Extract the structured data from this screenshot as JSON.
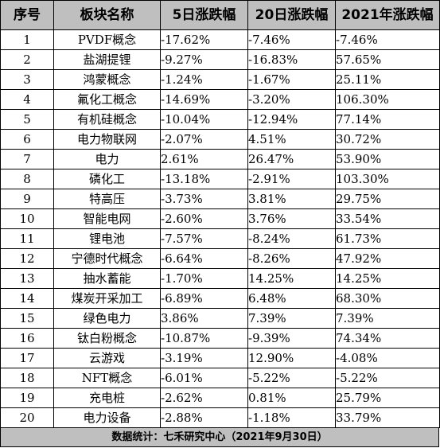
{
  "table": {
    "headers": [
      "序号",
      "板块名称",
      "5日涨跌幅",
      "20日涨跌幅",
      "2021年涨跌幅"
    ],
    "rows": [
      {
        "no": "1",
        "name": "PVDF概念",
        "d5": "-17.62%",
        "d20": "-7.46%",
        "y2021": "-7.46%"
      },
      {
        "no": "2",
        "name": "盐湖提锂",
        "d5": "-9.27%",
        "d20": "-16.83%",
        "y2021": "57.65%"
      },
      {
        "no": "3",
        "name": "鸿蒙概念",
        "d5": "-1.24%",
        "d20": "-1.67%",
        "y2021": "25.11%"
      },
      {
        "no": "4",
        "name": "氟化工概念",
        "d5": "-14.69%",
        "d20": "-3.20%",
        "y2021": "106.30%"
      },
      {
        "no": "5",
        "name": "有机硅概念",
        "d5": "-10.04%",
        "d20": "-12.94%",
        "y2021": "77.14%"
      },
      {
        "no": "6",
        "name": "电力物联网",
        "d5": "-2.07%",
        "d20": "4.51%",
        "y2021": "30.72%"
      },
      {
        "no": "7",
        "name": "电力",
        "d5": "2.61%",
        "d20": "26.47%",
        "y2021": "53.90%"
      },
      {
        "no": "8",
        "name": "磷化工",
        "d5": "-13.18%",
        "d20": "-2.91%",
        "y2021": "103.30%"
      },
      {
        "no": "9",
        "name": "特高压",
        "d5": "-3.73%",
        "d20": "3.81%",
        "y2021": "29.75%"
      },
      {
        "no": "10",
        "name": "智能电网",
        "d5": "-2.60%",
        "d20": "3.76%",
        "y2021": "33.54%"
      },
      {
        "no": "11",
        "name": "锂电池",
        "d5": "-7.57%",
        "d20": "-8.24%",
        "y2021": "61.73%"
      },
      {
        "no": "12",
        "name": "宁德时代概念",
        "d5": "-6.64%",
        "d20": "-8.26%",
        "y2021": "47.92%"
      },
      {
        "no": "13",
        "name": "抽水蓄能",
        "d5": "-1.70%",
        "d20": "14.25%",
        "y2021": "14.25%"
      },
      {
        "no": "14",
        "name": "煤炭开采加工",
        "d5": "-6.89%",
        "d20": "6.48%",
        "y2021": "68.30%"
      },
      {
        "no": "15",
        "name": "绿色电力",
        "d5": "3.86%",
        "d20": "7.39%",
        "y2021": "7.39%"
      },
      {
        "no": "16",
        "name": "钛白粉概念",
        "d5": "-10.87%",
        "d20": "-9.39%",
        "y2021": "74.34%"
      },
      {
        "no": "17",
        "name": "云游戏",
        "d5": "-3.19%",
        "d20": "12.90%",
        "y2021": "-4.08%"
      },
      {
        "no": "18",
        "name": "NFT概念",
        "d5": "-6.01%",
        "d20": "-5.22%",
        "y2021": "-5.22%"
      },
      {
        "no": "19",
        "name": "充电桩",
        "d5": "-2.62%",
        "d20": "0.81%",
        "y2021": "25.79%"
      },
      {
        "no": "20",
        "name": "电力设备",
        "d5": "-2.88%",
        "d20": "-1.18%",
        "y2021": "33.79%"
      }
    ]
  },
  "footer": {
    "text": "数据统计：七禾研究中心（2021年9月30日）"
  },
  "colors": {
    "header_bg": "#bfbfbf",
    "border": "#000000",
    "text": "#000000"
  }
}
